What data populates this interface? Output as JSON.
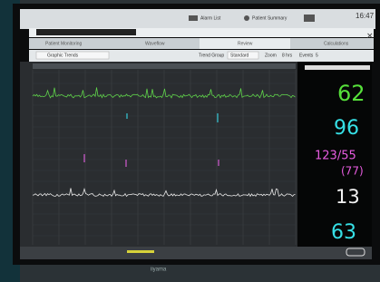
{
  "header": {
    "alarm_list": "Alarm List",
    "patient_summary": "Patient Summary",
    "time": "16:47"
  },
  "tabs": [
    "Patient Monitoring",
    "Waveflow",
    "Review",
    "Calculations"
  ],
  "toolbar": {
    "view": "Graphic Trends",
    "trend_group_label": "Trend Group",
    "trend_group": "Standard",
    "zoom_label": "Zoom",
    "zoom": "8 hrs",
    "events_label": "Events",
    "events": "5"
  },
  "vitals": [
    "62",
    "96",
    "123/55",
    "(77)",
    "13",
    "63"
  ],
  "monitor_brand": "iiyama"
}
